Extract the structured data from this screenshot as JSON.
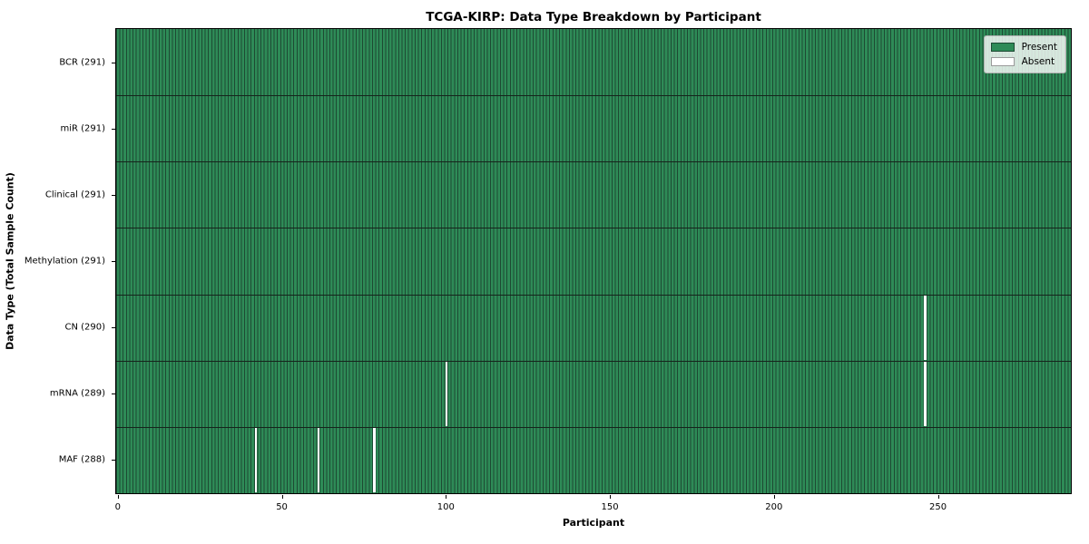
{
  "title": "TCGA-KIRP: Data Type Breakdown by Participant",
  "xlabel": "Participant",
  "ylabel": "Data Type (Total Sample Count)",
  "legend": {
    "present_label": "Present",
    "absent_label": "Absent"
  },
  "colors": {
    "present": "#2e8b57",
    "absent": "#ffffff",
    "cell_edge": "#1d4a33",
    "row_divider": "#16241c",
    "spine": "#000000"
  },
  "chart_data": {
    "type": "heatmap",
    "title": "TCGA-KIRP: Data Type Breakdown by Participant",
    "xlabel": "Participant",
    "ylabel": "Data Type (Total Sample Count)",
    "x_range": [
      0,
      291
    ],
    "x_ticks": [
      0,
      50,
      100,
      150,
      200,
      250
    ],
    "n_participants": 291,
    "grid": false,
    "legend_position": "upper right",
    "legend_entries": [
      "Present",
      "Absent"
    ],
    "rows": [
      {
        "label": "BCR (291)",
        "data_type": "BCR",
        "total_samples": 291,
        "missing_participants": []
      },
      {
        "label": "miR (291)",
        "data_type": "miR",
        "total_samples": 291,
        "missing_participants": []
      },
      {
        "label": "Clinical (291)",
        "data_type": "Clinical",
        "total_samples": 291,
        "missing_participants": []
      },
      {
        "label": "Methylation (291)",
        "data_type": "Methylation",
        "total_samples": 291,
        "missing_participants": []
      },
      {
        "label": "CN (290)",
        "data_type": "CN",
        "total_samples": 290,
        "missing_participants": [
          246
        ]
      },
      {
        "label": "mRNA (289)",
        "data_type": "mRNA",
        "total_samples": 289,
        "missing_participants": [
          100,
          246
        ]
      },
      {
        "label": "MAF (288)",
        "data_type": "MAF",
        "total_samples": 288,
        "missing_participants": [
          42,
          61,
          78
        ]
      }
    ]
  }
}
